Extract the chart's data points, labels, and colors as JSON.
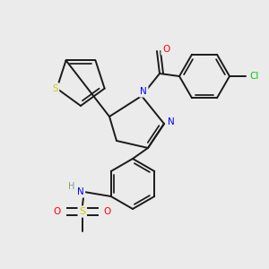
{
  "background_color": "#ebebeb",
  "bond_color": "#1a1a1a",
  "atom_colors": {
    "O": "#ff0000",
    "N": "#0000ff",
    "S_thiophene": "#cccc00",
    "S_sulfonamide": "#cccc00",
    "Cl": "#00cc00",
    "H": "#7f9f7f",
    "C": "#1a1a1a"
  },
  "figsize": [
    3.0,
    3.0
  ],
  "dpi": 100
}
